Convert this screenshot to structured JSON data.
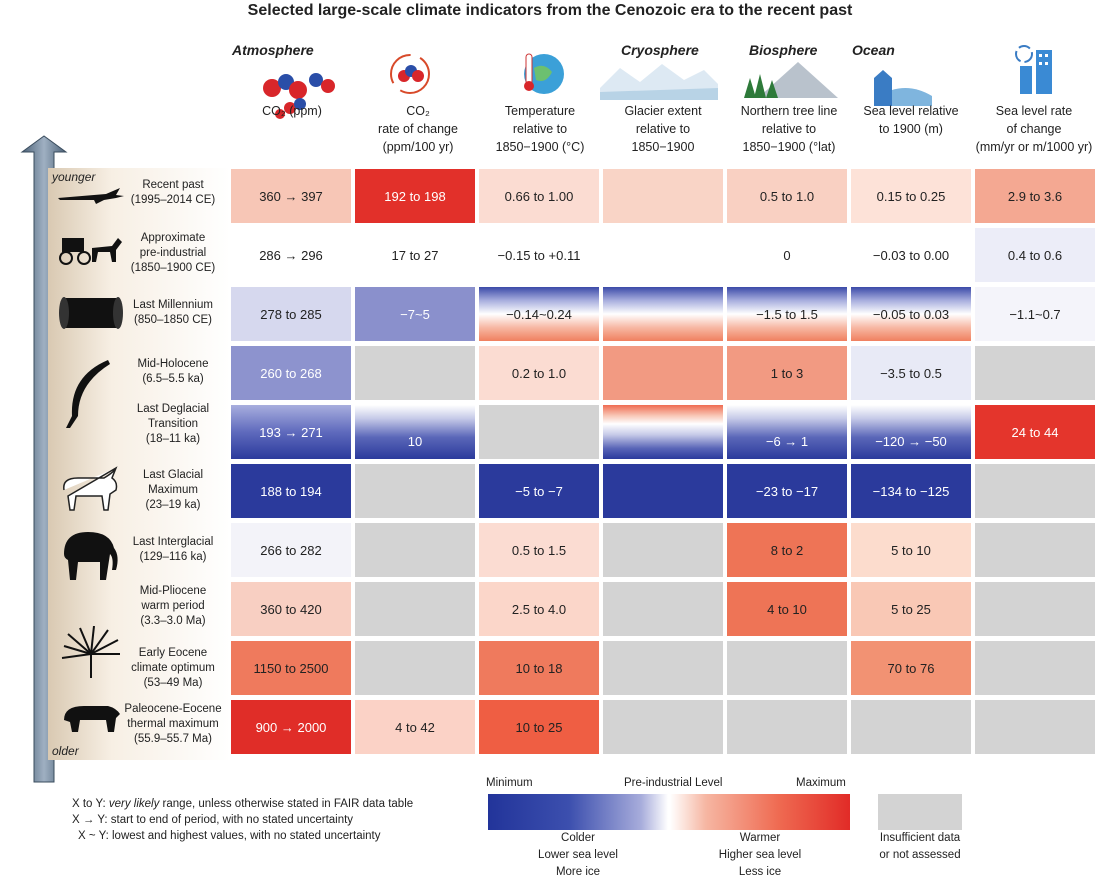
{
  "title": "Selected large-scale climate indicators from the Cenozoic era to the recent past",
  "categories": {
    "atmosphere": "Atmosphere",
    "cryosphere": "Cryosphere",
    "biosphere": "Biosphere",
    "ocean": "Ocean"
  },
  "columns": [
    {
      "line1": "",
      "line2": "CO₂ (ppm)",
      "line3": ""
    },
    {
      "line1": "CO₂",
      "line2": "rate of change",
      "line3": "(ppm/100 yr)"
    },
    {
      "line1": "Temperature",
      "line2": "relative to",
      "line3": "1850−1900 (°C)"
    },
    {
      "line1": "Glacier extent",
      "line2": "relative to",
      "line3": "1850−1900"
    },
    {
      "line1": "Northern tree line",
      "line2": "relative to",
      "line3": "1850−1900 (°lat)"
    },
    {
      "line1": "",
      "line2": "Sea level relative",
      "line3": "to 1900 (m)"
    },
    {
      "line1": "Sea level rate",
      "line2": "of change",
      "line3": "(mm/yr or m/1000 yr)"
    }
  ],
  "axis": {
    "younger": "younger",
    "older": "older"
  },
  "periods": [
    {
      "name": "Recent past",
      "range": "(1995–2014 CE)",
      "extra": ""
    },
    {
      "name": "Approximate",
      "range": "pre-industrial",
      "extra": "(1850–1900 CE)"
    },
    {
      "name": "Last Millennium",
      "range": "(850–1850 CE)",
      "extra": ""
    },
    {
      "name": "Mid-Holocene",
      "range": "(6.5–5.5 ka)",
      "extra": ""
    },
    {
      "name": "Last Deglacial",
      "range": "Transition",
      "extra": "(18–11 ka)"
    },
    {
      "name": "Last Glacial",
      "range": "Maximum",
      "extra": "(23–19 ka)"
    },
    {
      "name": "Last Interglacial",
      "range": "(129–116 ka)",
      "extra": ""
    },
    {
      "name": "Mid-Pliocene",
      "range": "warm period",
      "extra": "(3.3–3.0 Ma)"
    },
    {
      "name": "Early Eocene",
      "range": "climate optimum",
      "extra": "(53–49 Ma)"
    },
    {
      "name": "Paleocene-Eocene",
      "range": "thermal maximum",
      "extra": "(55.9–55.7 Ma)"
    }
  ],
  "cells": [
    [
      "360 → 397",
      "192 to 198",
      "0.66 to 1.00",
      "",
      "0.5 to 1.0",
      "0.15 to 0.25",
      "2.9 to 3.6"
    ],
    [
      "286 → 296",
      "17 to 27",
      "−0.15 to +0.11",
      "",
      "0",
      "−0.03 to 0.00",
      "0.4 to 0.6"
    ],
    [
      "278 to 285",
      "−7~5",
      "−0.14~0.24",
      "",
      "−1.5 to 1.5",
      "−0.05 to 0.03",
      "−1.1~0.7"
    ],
    [
      "260 to 268",
      "",
      "0.2 to 1.0",
      "",
      "1 to 3",
      "−3.5 to 0.5",
      ""
    ],
    [
      "193 → 271",
      "10",
      "",
      "",
      "−6 → 1",
      "−120 → −50",
      "24 to 44"
    ],
    [
      "188 to 194",
      "",
      "−5 to −7",
      "",
      "−23 to −17",
      "−134 to −125",
      ""
    ],
    [
      "266 to 282",
      "",
      "0.5 to 1.5",
      "",
      "8 to 2",
      "5 to 10",
      ""
    ],
    [
      "360 to 420",
      "",
      "2.5 to 4.0",
      "",
      "4 to 10",
      "5 to 25",
      ""
    ],
    [
      "1150 to 2500",
      "",
      "10 to 18",
      "",
      "",
      "70 to 76",
      ""
    ],
    [
      "900 → 2000",
      "4 to 42",
      "10 to 25",
      "",
      "",
      "",
      ""
    ]
  ],
  "cell_colors": [
    [
      "#f7c6b6",
      "#e2302a",
      "#fbdcd2",
      "#f9d4c6",
      "#f9d0c2",
      "#fde2d8",
      "#f4a892"
    ],
    [
      "#ffffff",
      "#ffffff",
      "#ffffff",
      "#ffffff",
      "#ffffff",
      "#ffffff",
      "#ecedf8"
    ],
    [
      "#d6d8ee",
      "#8a90cc",
      "grad-blue-white-red",
      "grad-blue-white-red",
      "grad-blue-white-red",
      "grad-blue-white-red",
      "#f4f4fa"
    ],
    [
      "#8d93ce",
      "#d3d3d3",
      "#fbdcd2",
      "#f29a82",
      "#f29a82",
      "#e8eaf6",
      "#d3d3d3"
    ],
    [
      "grad-blue-dark",
      "grad-white-blue",
      "#d3d3d3",
      "grad-red-white-blue",
      "grad-white-blue",
      "grad-white-blue",
      "#e4352c"
    ],
    [
      "#2b3a9c",
      "#d3d3d3",
      "#2b3a9c",
      "#2b3a9c",
      "#2b3a9c",
      "#2b3a9c",
      "#d3d3d3"
    ],
    [
      "#f3f3f9",
      "#d3d3d3",
      "#fbdcd2",
      "#d3d3d3",
      "#ee7456",
      "#fcdccd",
      "#d3d3d3"
    ],
    [
      "#f8cfc2",
      "#d3d3d3",
      "#fbd6c9",
      "#d3d3d3",
      "#ee7456",
      "#f9c8b5",
      "#d3d3d3"
    ],
    [
      "#ef7a5d",
      "#d3d3d3",
      "#ef7a5d",
      "#d3d3d3",
      "#d3d3d3",
      "#f29273",
      "#d3d3d3"
    ],
    [
      "#e02d28",
      "#fbd2c6",
      "#ef5e43",
      "#d3d3d3",
      "#d3d3d3",
      "#d3d3d3",
      "#d3d3d3"
    ]
  ],
  "key": {
    "line1a": "X to Y: ",
    "line1b": "very likely",
    "line1c": " range, unless otherwise stated in FAIR data table",
    "line2": "X → Y: start to end of period, with no stated uncertainty",
    "line3": "X ~ Y: lowest and highest values, with no stated uncertainty"
  },
  "legend": {
    "minimum": "Minimum",
    "preindustrial": "Pre-industrial Level",
    "maximum": "Maximum",
    "colder": [
      "Colder",
      "Lower sea level",
      "More ice"
    ],
    "warmer": [
      "Warmer",
      "Higher sea level",
      "Less ice"
    ],
    "insufficient": [
      "Insufficient data",
      "or not assessed"
    ]
  }
}
